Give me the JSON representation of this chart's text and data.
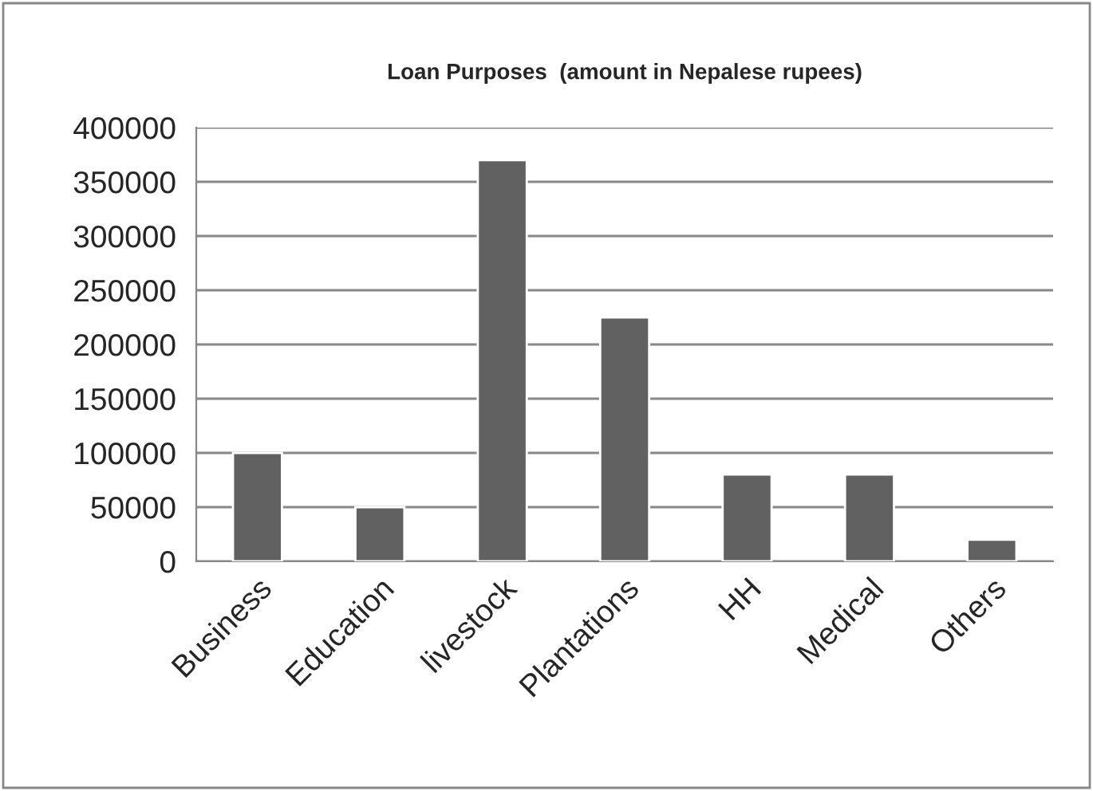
{
  "chart_data": {
    "type": "bar",
    "title": "Loan Purposes  (amount in Nepalese rupees)",
    "categories": [
      "Business",
      "Education",
      "livestock",
      "Plantations",
      "HH",
      "Medical",
      "Others"
    ],
    "values": [
      100000,
      50000,
      370000,
      225000,
      80000,
      80000,
      20000
    ],
    "color": "#616161",
    "ylim": [
      0,
      400000
    ],
    "yticks": [
      0,
      50000,
      100000,
      150000,
      200000,
      250000,
      300000,
      350000,
      400000
    ],
    "grid": "y",
    "legend": false
  }
}
